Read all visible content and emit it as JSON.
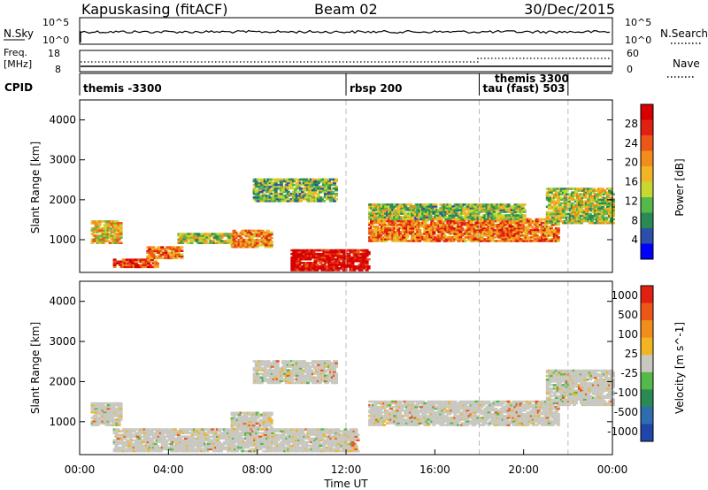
{
  "header": {
    "title": "Kapuskasing (fitACF)",
    "beam": "Beam 02",
    "date": "30/Dec/2015"
  },
  "noise_panel": {
    "left_label": "N.Sky",
    "right_label": "N.Search",
    "ticks": [
      "10^5",
      "10^0"
    ]
  },
  "freq_panel": {
    "left_label_line1": "Freq.",
    "left_label_line2": "[MHz]",
    "left_ticks": [
      "18",
      "8"
    ],
    "right_label": "Nave",
    "right_ticks": [
      "60",
      "0"
    ]
  },
  "cpid_panel": {
    "label": "CPID",
    "segments": [
      {
        "start_hour": 0.0,
        "text": "themis -3300"
      },
      {
        "start_hour": 12.0,
        "text": "rbsp 200"
      },
      {
        "start_hour": 18.0,
        "text": "tau (fast) 503"
      },
      {
        "start_hour": 22.0,
        "text": ""
      }
    ],
    "extra_labels": [
      {
        "hour": 18.7,
        "text": "themis 3300"
      }
    ]
  },
  "chart_data": [
    {
      "type": "heatmap",
      "name": "power",
      "ylabel": "Slant Range [km]",
      "xlim": [
        0,
        24
      ],
      "ylim": [
        180,
        4500
      ],
      "yticks": [
        "1000",
        "2000",
        "3000",
        "4000"
      ],
      "colorbar": {
        "label": "Power [dB]",
        "ticks": [
          "4",
          "8",
          "12",
          "16",
          "20",
          "24",
          "28"
        ],
        "colors": [
          "#0000ff",
          "#2e4fa8",
          "#2a8a55",
          "#54b84a",
          "#c8d833",
          "#f0b425",
          "#f28c1a",
          "#ec5617",
          "#e02010",
          "#d60000"
        ]
      },
      "echo_regions": [
        {
          "t0": 0.5,
          "t1": 1.8,
          "r0": 900,
          "r1": 1450,
          "level": 0.55
        },
        {
          "t0": 1.5,
          "t1": 3.5,
          "r0": 300,
          "r1": 500,
          "level": 0.8
        },
        {
          "t0": 3.0,
          "t1": 4.6,
          "r0": 520,
          "r1": 820,
          "level": 0.7
        },
        {
          "t0": 4.4,
          "t1": 6.8,
          "r0": 900,
          "r1": 1150,
          "level": 0.45
        },
        {
          "t0": 6.8,
          "t1": 8.6,
          "r0": 800,
          "r1": 1250,
          "level": 0.65
        },
        {
          "t0": 7.8,
          "t1": 11.5,
          "r0": 1950,
          "r1": 2500,
          "level": 0.35
        },
        {
          "t0": 9.5,
          "t1": 13.0,
          "r0": 220,
          "r1": 750,
          "level": 0.95
        },
        {
          "t0": 13.0,
          "t1": 21.5,
          "r0": 950,
          "r1": 1500,
          "level": 0.7
        },
        {
          "t0": 13.0,
          "t1": 20.0,
          "r0": 1500,
          "r1": 1900,
          "level": 0.4
        },
        {
          "t0": 21.0,
          "t1": 24.0,
          "r0": 1400,
          "r1": 2300,
          "level": 0.45
        }
      ]
    },
    {
      "type": "heatmap",
      "name": "velocity",
      "ylabel": "Slant Range [km]",
      "xlabel": "Time UT",
      "xlim": [
        0,
        24
      ],
      "ylim": [
        180,
        4500
      ],
      "yticks": [
        "1000",
        "2000",
        "3000",
        "4000"
      ],
      "xticks": [
        "00:00",
        "04:00",
        "08:00",
        "12:00",
        "16:00",
        "20:00",
        "00:00"
      ],
      "colorbar": {
        "label": "Velocity [m s^-1]",
        "ticks": [
          "1000",
          "500",
          "100",
          "25",
          "-25",
          "-100",
          "-500",
          "-1000"
        ],
        "colors": [
          "#1f46a8",
          "#2e6db0",
          "#2a8a55",
          "#54b84a",
          "#c8c8c0",
          "#f0b425",
          "#f28c1a",
          "#ec5617",
          "#e02010"
        ]
      },
      "echo_regions": [
        {
          "t0": 0.5,
          "t1": 1.8,
          "r0": 900,
          "r1": 1450,
          "level": "ground"
        },
        {
          "t0": 1.5,
          "t1": 12.5,
          "r0": 250,
          "r1": 800,
          "level": "ground"
        },
        {
          "t0": 6.8,
          "t1": 8.6,
          "r0": 800,
          "r1": 1250,
          "level": "ground"
        },
        {
          "t0": 7.8,
          "t1": 11.5,
          "r0": 1950,
          "r1": 2500,
          "level": "ground"
        },
        {
          "t0": 13.0,
          "t1": 21.5,
          "r0": 900,
          "r1": 1500,
          "level": "ground"
        },
        {
          "t0": 21.0,
          "t1": 24.0,
          "r0": 1400,
          "r1": 2300,
          "level": "ground"
        }
      ]
    }
  ]
}
